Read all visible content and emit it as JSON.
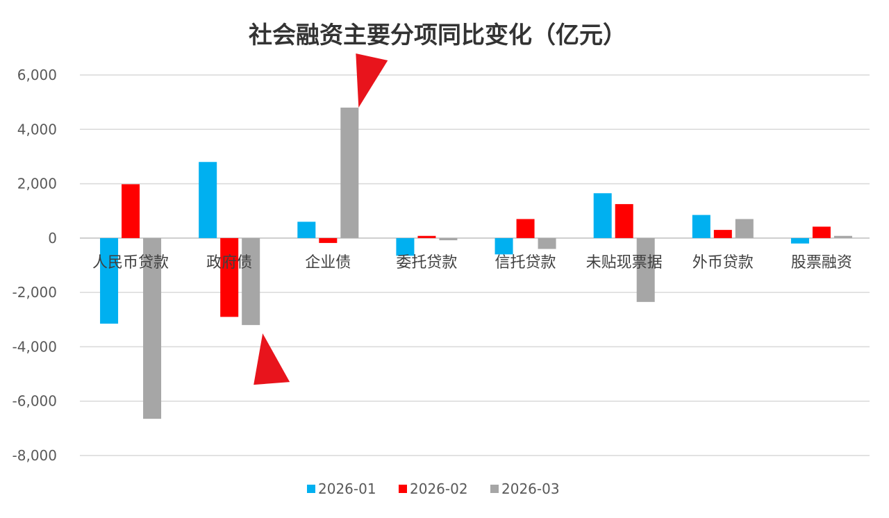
{
  "chart_data": {
    "type": "bar",
    "title": "社会融资主要分项同比变化（亿元）",
    "categories": [
      "人民币贷款",
      "政府债",
      "企业债",
      "委托贷款",
      "信托贷款",
      "未贴现票据",
      "外币贷款",
      "股票融资"
    ],
    "series": [
      {
        "name": "2026-01",
        "color": "#00b0f0",
        "values": [
          -3150,
          2800,
          600,
          -650,
          -600,
          1650,
          850,
          -200
        ]
      },
      {
        "name": "2026-02",
        "color": "#ff0000",
        "values": [
          1980,
          -2900,
          -180,
          80,
          700,
          1250,
          300,
          420
        ]
      },
      {
        "name": "2026-03",
        "color": "#a6a6a6",
        "values": [
          -6650,
          -3200,
          4800,
          -80,
          -400,
          -2350,
          700,
          80
        ]
      }
    ],
    "yticks": [
      "6,000",
      "4,000",
      "2,000",
      "0",
      "-2,000",
      "-4,000",
      "-6,000",
      "-8,000"
    ],
    "ytick_values": [
      6000,
      4000,
      2000,
      0,
      -2000,
      -4000,
      -6000,
      -8000
    ],
    "ylim": [
      -8000,
      6000
    ],
    "grid": true,
    "legend_position": "bottom",
    "annotations": [
      {
        "type": "arrow",
        "color": "#e8141c",
        "series": "2026-03",
        "category": "企业债",
        "direction": "pointing-down"
      },
      {
        "type": "arrow",
        "color": "#e8141c",
        "series": "2026-03",
        "category": "政府债",
        "direction": "pointing-up"
      }
    ]
  }
}
